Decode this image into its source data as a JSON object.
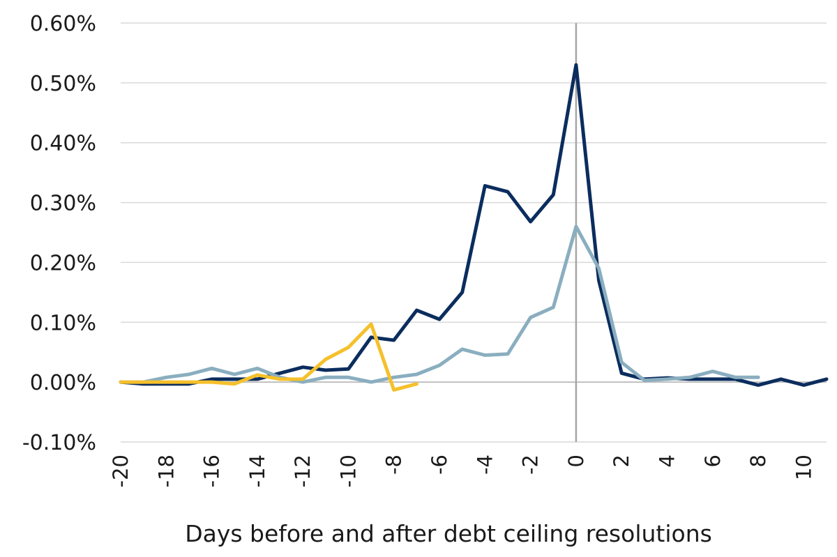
{
  "chart_data": {
    "type": "line",
    "xlabel": "Days before and after debt ceiling resolutions",
    "ylabel": "",
    "title": "",
    "xlim": [
      -20,
      11
    ],
    "ylim": [
      -0.001,
      0.006
    ],
    "x_ticks": [
      -20,
      -18,
      -16,
      -14,
      -12,
      -10,
      -8,
      -6,
      -4,
      -2,
      0,
      2,
      4,
      6,
      8,
      10
    ],
    "x_tick_labels": [
      "-20",
      "-18",
      "-16",
      "-14",
      "-12",
      "-10",
      "-8",
      "-6",
      "-4",
      "-2",
      "0",
      "2",
      "4",
      "6",
      "8",
      "10"
    ],
    "y_ticks": [
      -0.001,
      0,
      0.001,
      0.002,
      0.003,
      0.004,
      0.005,
      0.006
    ],
    "y_tick_labels": [
      "-0.10%",
      "0.00%",
      "0.10%",
      "0.20%",
      "0.30%",
      "0.40%",
      "0.50%",
      "0.60%"
    ],
    "grid": "horizontal",
    "reference_line_x": 0,
    "legend": "none",
    "series": [
      {
        "color": "#0b2d5e",
        "x": [
          -20,
          -19,
          -18,
          -17,
          -16,
          -15,
          -14,
          -13,
          -12,
          -11,
          -10,
          -9,
          -8,
          -7,
          -6,
          -5,
          -4,
          -3,
          -2,
          -1,
          0,
          1,
          2,
          3,
          4,
          5,
          6,
          7,
          8,
          9,
          10,
          11
        ],
        "y": [
          0.0,
          -3e-05,
          -3e-05,
          -3e-05,
          5e-05,
          5e-05,
          5e-05,
          0.00015,
          0.00025,
          0.0002,
          0.00022,
          0.00075,
          0.0007,
          0.0012,
          0.00105,
          0.0015,
          0.00328,
          0.00318,
          0.00268,
          0.00313,
          0.0053,
          0.0017,
          0.00015,
          5e-05,
          7e-05,
          5e-05,
          5e-05,
          5e-05,
          -5e-05,
          5e-05,
          -5e-05,
          5e-05
        ]
      },
      {
        "color": "#8aaebf",
        "x": [
          -20,
          -19,
          -18,
          -17,
          -16,
          -15,
          -14,
          -13,
          -12,
          -11,
          -10,
          -9,
          -8,
          -7,
          -6,
          -5,
          -4,
          -3,
          -2,
          -1,
          0,
          1,
          2,
          3,
          4,
          5,
          6,
          7,
          8
        ],
        "y": [
          0.0,
          0.0,
          8e-05,
          0.00013,
          0.00023,
          0.00013,
          0.00023,
          8e-05,
          0.0,
          8e-05,
          8e-05,
          0.0,
          8e-05,
          0.00013,
          0.00028,
          0.00055,
          0.00045,
          0.00047,
          0.00108,
          0.00125,
          0.0026,
          0.0019,
          0.00033,
          3e-05,
          5e-05,
          8e-05,
          0.00018,
          8e-05,
          8e-05
        ]
      },
      {
        "color": "#f5c02b",
        "x": [
          -20,
          -19,
          -18,
          -17,
          -16,
          -15,
          -14,
          -13,
          -12,
          -11,
          -10,
          -9,
          -8,
          -7
        ],
        "y": [
          0.0,
          0.0,
          0.0,
          0.0,
          0.0,
          -3e-05,
          0.00012,
          5e-05,
          5e-05,
          0.00038,
          0.00058,
          0.00097,
          -0.00013,
          -3e-05
        ]
      }
    ]
  }
}
